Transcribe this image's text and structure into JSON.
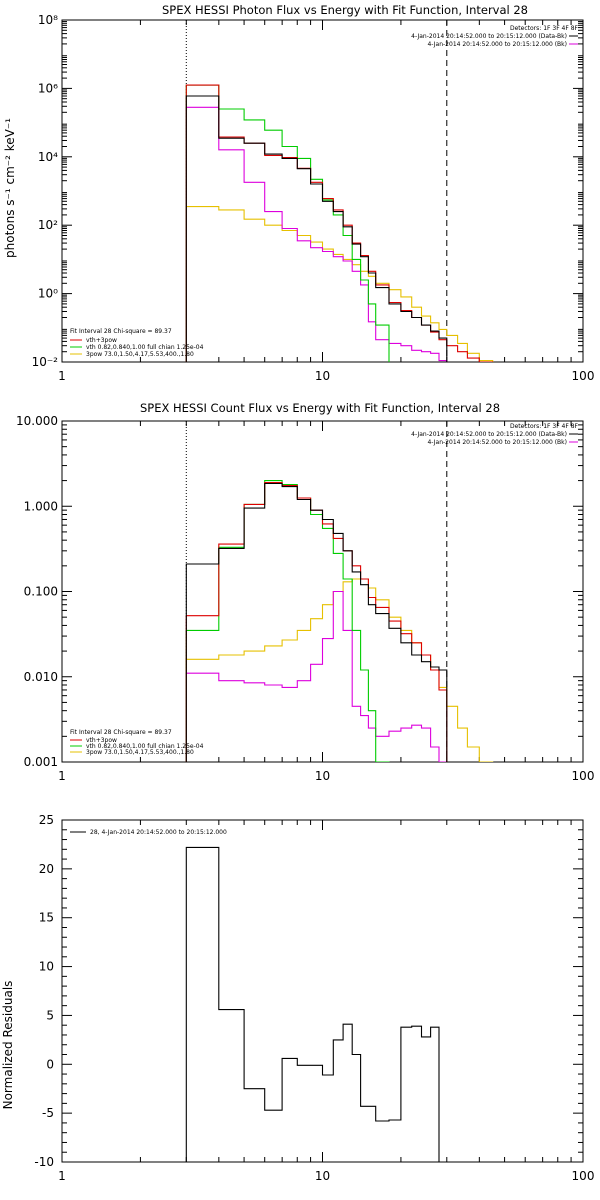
{
  "chart_data": [
    {
      "type": "line",
      "title": "SPEX HESSI Photon Flux vs Energy with Fit Function, Interval 28",
      "xlabel": "",
      "ylabel": "photons s⁻¹ cm⁻² keV⁻¹",
      "xscale": "log",
      "yscale": "log",
      "xlim": [
        1,
        100
      ],
      "ylim": [
        0.01,
        100000000
      ],
      "xtick_labels": [
        "1",
        "10",
        "100"
      ],
      "ytick_labels": [
        "10⁻²",
        "10⁰",
        "10²",
        "10⁴",
        "10⁶",
        "10⁸"
      ],
      "vlines": [
        {
          "x": 3,
          "style": "dotted"
        },
        {
          "x": 30,
          "style": "dashed"
        }
      ],
      "legend_top": [
        "Detectors: 1F 3F 4F 8F",
        "4-Jan-2014 20:14:52.000 to 20:15:12.000 (Data-Bk)",
        "4-Jan-2014 20:14:52.000 to 20:15:12.000 (Bk)"
      ],
      "legend_bottom": [
        "Fit Interval 28    Chi-square = 89.37",
        "vth+3pow",
        "vth 0.82,0.840,1.00  full chian 1.25e-04",
        "3pow 73.0,1.50,4.17,5.53,400.,1.80"
      ],
      "edges": [
        3,
        4,
        5,
        6,
        7,
        8,
        9,
        10,
        11,
        12,
        13,
        14,
        15,
        16,
        18,
        20,
        22,
        24,
        26,
        28,
        30,
        33,
        36,
        40,
        45
      ],
      "series": [
        {
          "key": "data",
          "color": "#000000",
          "values": [
            600000,
            35000,
            25000,
            12000,
            9000,
            4500,
            1600,
            500,
            250,
            90,
            28,
            12,
            4,
            1.5,
            0.5,
            0.3,
            0.2,
            0.12,
            0.08,
            0.05,
            null,
            null,
            null,
            null
          ]
        },
        {
          "key": "fit",
          "color": "#dd0000",
          "values": [
            1250000,
            38000,
            25000,
            11000,
            9500,
            4600,
            1800,
            600,
            280,
            100,
            30,
            13,
            4.5,
            1.8,
            0.55,
            0.32,
            0.2,
            0.12,
            0.075,
            0.045,
            0.03,
            0.02,
            0.013,
            0.01
          ]
        },
        {
          "key": "vth",
          "color": "#00cc00",
          "values": [
            1250000,
            250000,
            120000,
            60000,
            20000,
            9000,
            2200,
            550,
            200,
            50,
            10,
            2.5,
            0.5,
            0.12,
            null,
            null,
            null,
            null,
            null,
            null,
            null,
            null,
            null,
            null
          ]
        },
        {
          "key": "3pow",
          "color": "#e6c000",
          "values": [
            350,
            280,
            150,
            100,
            70,
            50,
            32,
            20,
            14,
            10,
            7,
            4.5,
            3.2,
            2,
            1.3,
            0.8,
            0.4,
            0.22,
            0.14,
            0.09,
            0.06,
            0.035,
            0.018,
            0.011
          ]
        },
        {
          "key": "bk",
          "color": "#dd00dd",
          "values": [
            280000,
            16000,
            1800,
            250,
            80,
            35,
            22,
            17,
            12,
            9,
            4.5,
            1.8,
            0.15,
            0.045,
            0.035,
            0.03,
            0.022,
            0.02,
            0.018,
            0.011,
            null,
            null,
            null,
            null
          ]
        }
      ]
    },
    {
      "type": "line",
      "title": "SPEX HESSI Count Flux vs Energy with Fit Function, Interval 28",
      "xlabel": "",
      "ylabel": "",
      "xscale": "log",
      "yscale": "log",
      "xlim": [
        1,
        100
      ],
      "ylim": [
        0.001,
        10
      ],
      "xtick_labels": [
        "1",
        "10",
        "100"
      ],
      "ytick_labels": [
        "0.001",
        "0.010",
        "0.100",
        "1.000",
        "10.000"
      ],
      "vlines": [
        {
          "x": 3,
          "style": "dotted"
        },
        {
          "x": 30,
          "style": "dashed"
        }
      ],
      "legend_top": [
        "Detectors: 1F 3F 4F 8F",
        "4-Jan-2014 20:14:52.000 to 20:15:12.000 (Data-Bk)",
        "4-Jan-2014 20:14:52.000 to 20:15:12.000 (Bk)"
      ],
      "legend_bottom": [
        "Fit Interval 28    Chi-square = 89.37",
        "vth+3pow",
        "vth 0.82,0.840,1.00  full chian 1.25e-04",
        "3pow 73.0,1.50,4.17,5.53,400.,1.80"
      ],
      "edges": [
        3,
        4,
        5,
        6,
        7,
        8,
        9,
        10,
        11,
        12,
        13,
        14,
        15,
        16,
        18,
        20,
        22,
        24,
        26,
        28,
        30,
        33,
        36,
        40,
        45
      ],
      "series": [
        {
          "key": "data",
          "color": "#000000",
          "values": [
            0.21,
            0.32,
            0.95,
            1.85,
            1.7,
            1.2,
            0.9,
            0.7,
            0.48,
            0.3,
            0.17,
            0.12,
            0.07,
            0.055,
            0.037,
            0.025,
            0.018,
            0.015,
            0.013,
            0.012,
            null,
            null,
            null,
            null
          ]
        },
        {
          "key": "fit",
          "color": "#dd0000",
          "values": [
            0.052,
            0.36,
            1.05,
            1.9,
            1.75,
            1.25,
            0.9,
            0.62,
            0.42,
            0.3,
            0.2,
            0.14,
            0.085,
            0.065,
            0.045,
            0.032,
            0.025,
            0.018,
            0.012,
            0.007,
            null,
            null,
            null,
            null
          ]
        },
        {
          "key": "vth",
          "color": "#00cc00",
          "values": [
            0.035,
            0.33,
            1.05,
            2.0,
            1.8,
            1.25,
            0.8,
            0.55,
            0.28,
            0.14,
            0.035,
            0.012,
            0.004,
            0.001,
            null,
            null,
            null,
            null,
            null,
            null,
            null,
            null,
            null,
            null
          ]
        },
        {
          "key": "3pow",
          "color": "#e6c000",
          "values": [
            0.016,
            0.018,
            0.02,
            0.023,
            0.027,
            0.035,
            0.048,
            0.07,
            0.1,
            0.13,
            0.14,
            0.14,
            0.11,
            0.08,
            0.05,
            0.035,
            0.025,
            0.018,
            0.012,
            0.0075,
            0.0045,
            0.0025,
            0.0015,
            0.001
          ]
        },
        {
          "key": "bk",
          "color": "#dd00dd",
          "values": [
            0.011,
            0.009,
            0.0085,
            0.008,
            0.0075,
            0.009,
            0.014,
            0.028,
            0.1,
            0.035,
            0.0045,
            0.0035,
            0.0025,
            0.002,
            0.0023,
            0.0025,
            0.0027,
            0.0025,
            0.0015,
            0.001,
            null,
            null,
            null,
            null
          ]
        }
      ]
    },
    {
      "type": "line",
      "title": "",
      "xlabel": "",
      "ylabel": "Normalized Residuals",
      "xscale": "log",
      "yscale": "linear",
      "xlim": [
        1,
        100
      ],
      "ylim": [
        -10,
        25
      ],
      "xtick_labels": [
        "1",
        "10",
        "100"
      ],
      "ytick_labels": [
        "-10",
        "-5",
        "0",
        "5",
        "10",
        "15",
        "20",
        "25"
      ],
      "legend_entry": "28,  4-Jan-2014 20:14:52.000 to 20:15:12.000",
      "edges": [
        3,
        4,
        5,
        6,
        7,
        8,
        9,
        10,
        11,
        12,
        13,
        14,
        16,
        18,
        20,
        22,
        24,
        26,
        28,
        30
      ],
      "series": [
        {
          "key": "residuals",
          "color": "#000000",
          "values": [
            22.2,
            5.6,
            -2.5,
            -4.7,
            0.6,
            -0.1,
            -0.1,
            -1.1,
            2.5,
            4.1,
            1.0,
            -4.3,
            -5.8,
            -5.7,
            3.8,
            3.9,
            2.8,
            3.8,
            -10
          ]
        }
      ]
    }
  ]
}
